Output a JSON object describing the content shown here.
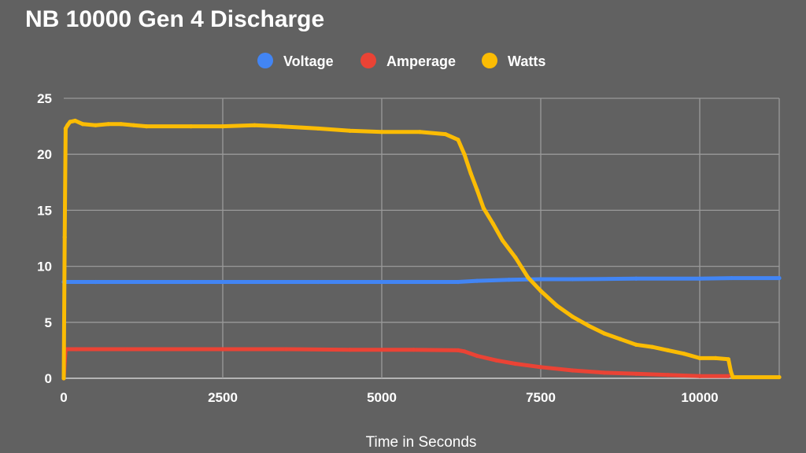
{
  "chart_data": {
    "type": "line",
    "title": "NB 10000 Gen 4 Discharge",
    "xlabel": "Time in Seconds",
    "ylabel": "",
    "xlim": [
      0,
      11250
    ],
    "ylim": [
      0,
      25
    ],
    "x_ticks": [
      0,
      2500,
      5000,
      7500,
      10000
    ],
    "y_ticks": [
      0,
      5,
      10,
      15,
      20,
      25
    ],
    "grid": true,
    "legend_position": "top",
    "series": [
      {
        "name": "Voltage",
        "color": "#4285f4",
        "points": [
          [
            0,
            8.6
          ],
          [
            500,
            8.6
          ],
          [
            2000,
            8.6
          ],
          [
            4000,
            8.6
          ],
          [
            6200,
            8.6
          ],
          [
            6500,
            8.7
          ],
          [
            7000,
            8.8
          ],
          [
            7500,
            8.85
          ],
          [
            8000,
            8.85
          ],
          [
            9000,
            8.9
          ],
          [
            10000,
            8.9
          ],
          [
            10500,
            8.95
          ],
          [
            11250,
            8.95
          ]
        ]
      },
      {
        "name": "Amperage",
        "color": "#ea4335",
        "points": [
          [
            0,
            0
          ],
          [
            15,
            1.5
          ],
          [
            30,
            2.6
          ],
          [
            200,
            2.6
          ],
          [
            1000,
            2.6
          ],
          [
            2500,
            2.6
          ],
          [
            3500,
            2.6
          ],
          [
            4500,
            2.55
          ],
          [
            5500,
            2.55
          ],
          [
            6200,
            2.5
          ],
          [
            6300,
            2.4
          ],
          [
            6500,
            2.0
          ],
          [
            6800,
            1.6
          ],
          [
            7100,
            1.3
          ],
          [
            7500,
            1.0
          ],
          [
            8000,
            0.7
          ],
          [
            8500,
            0.5
          ],
          [
            9000,
            0.4
          ],
          [
            9500,
            0.3
          ],
          [
            10000,
            0.2
          ],
          [
            10450,
            0.2
          ]
        ]
      },
      {
        "name": "Watts",
        "color": "#fbbc04",
        "points": [
          [
            0,
            0
          ],
          [
            15,
            12.6
          ],
          [
            30,
            22.3
          ],
          [
            60,
            22.6
          ],
          [
            100,
            22.9
          ],
          [
            180,
            23.0
          ],
          [
            300,
            22.7
          ],
          [
            500,
            22.6
          ],
          [
            700,
            22.7
          ],
          [
            900,
            22.7
          ],
          [
            1100,
            22.6
          ],
          [
            1300,
            22.5
          ],
          [
            2000,
            22.5
          ],
          [
            2500,
            22.5
          ],
          [
            3000,
            22.6
          ],
          [
            3400,
            22.5
          ],
          [
            4000,
            22.3
          ],
          [
            4500,
            22.1
          ],
          [
            5000,
            22.0
          ],
          [
            5600,
            22.0
          ],
          [
            6000,
            21.8
          ],
          [
            6200,
            21.3
          ],
          [
            6300,
            20.0
          ],
          [
            6400,
            18.3
          ],
          [
            6500,
            16.8
          ],
          [
            6600,
            15.2
          ],
          [
            6750,
            13.8
          ],
          [
            6900,
            12.3
          ],
          [
            7100,
            10.8
          ],
          [
            7300,
            9.0
          ],
          [
            7500,
            7.8
          ],
          [
            7750,
            6.5
          ],
          [
            8000,
            5.5
          ],
          [
            8250,
            4.7
          ],
          [
            8500,
            4.0
          ],
          [
            8750,
            3.5
          ],
          [
            9000,
            3.0
          ],
          [
            9250,
            2.8
          ],
          [
            9500,
            2.5
          ],
          [
            9750,
            2.2
          ],
          [
            10000,
            1.8
          ],
          [
            10250,
            1.8
          ],
          [
            10450,
            1.7
          ],
          [
            10490,
            0.6
          ],
          [
            10520,
            0.1
          ],
          [
            11250,
            0.1
          ]
        ]
      }
    ]
  }
}
